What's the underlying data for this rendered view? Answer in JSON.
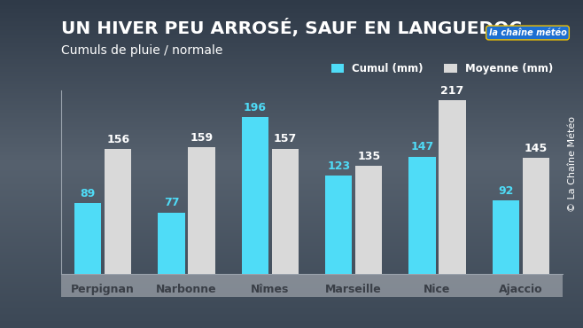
{
  "chart_data": {
    "type": "bar",
    "title": "UN HIVER PEU ARROSÉ, SAUF EN LANGUEDOC",
    "subtitle": "Cumuls de pluie / normale",
    "categories": [
      "Perpignan",
      "Narbonne",
      "Nîmes",
      "Marseille",
      "Nice",
      "Ajaccio"
    ],
    "series": [
      {
        "name": "Cumul (mm)",
        "color": "#4fdcf7",
        "values": [
          89,
          77,
          196,
          123,
          147,
          92
        ]
      },
      {
        "name": "Moyenne (mm)",
        "color": "#d9d9d9",
        "values": [
          156,
          159,
          157,
          135,
          217,
          145
        ]
      }
    ],
    "ylim": [
      0,
      230
    ],
    "tick_labels": "x",
    "data_labels": true,
    "legend": "upper right",
    "grid": false,
    "annotations": [
      "© La Chaîne Météo",
      "la chaîne météo"
    ]
  }
}
